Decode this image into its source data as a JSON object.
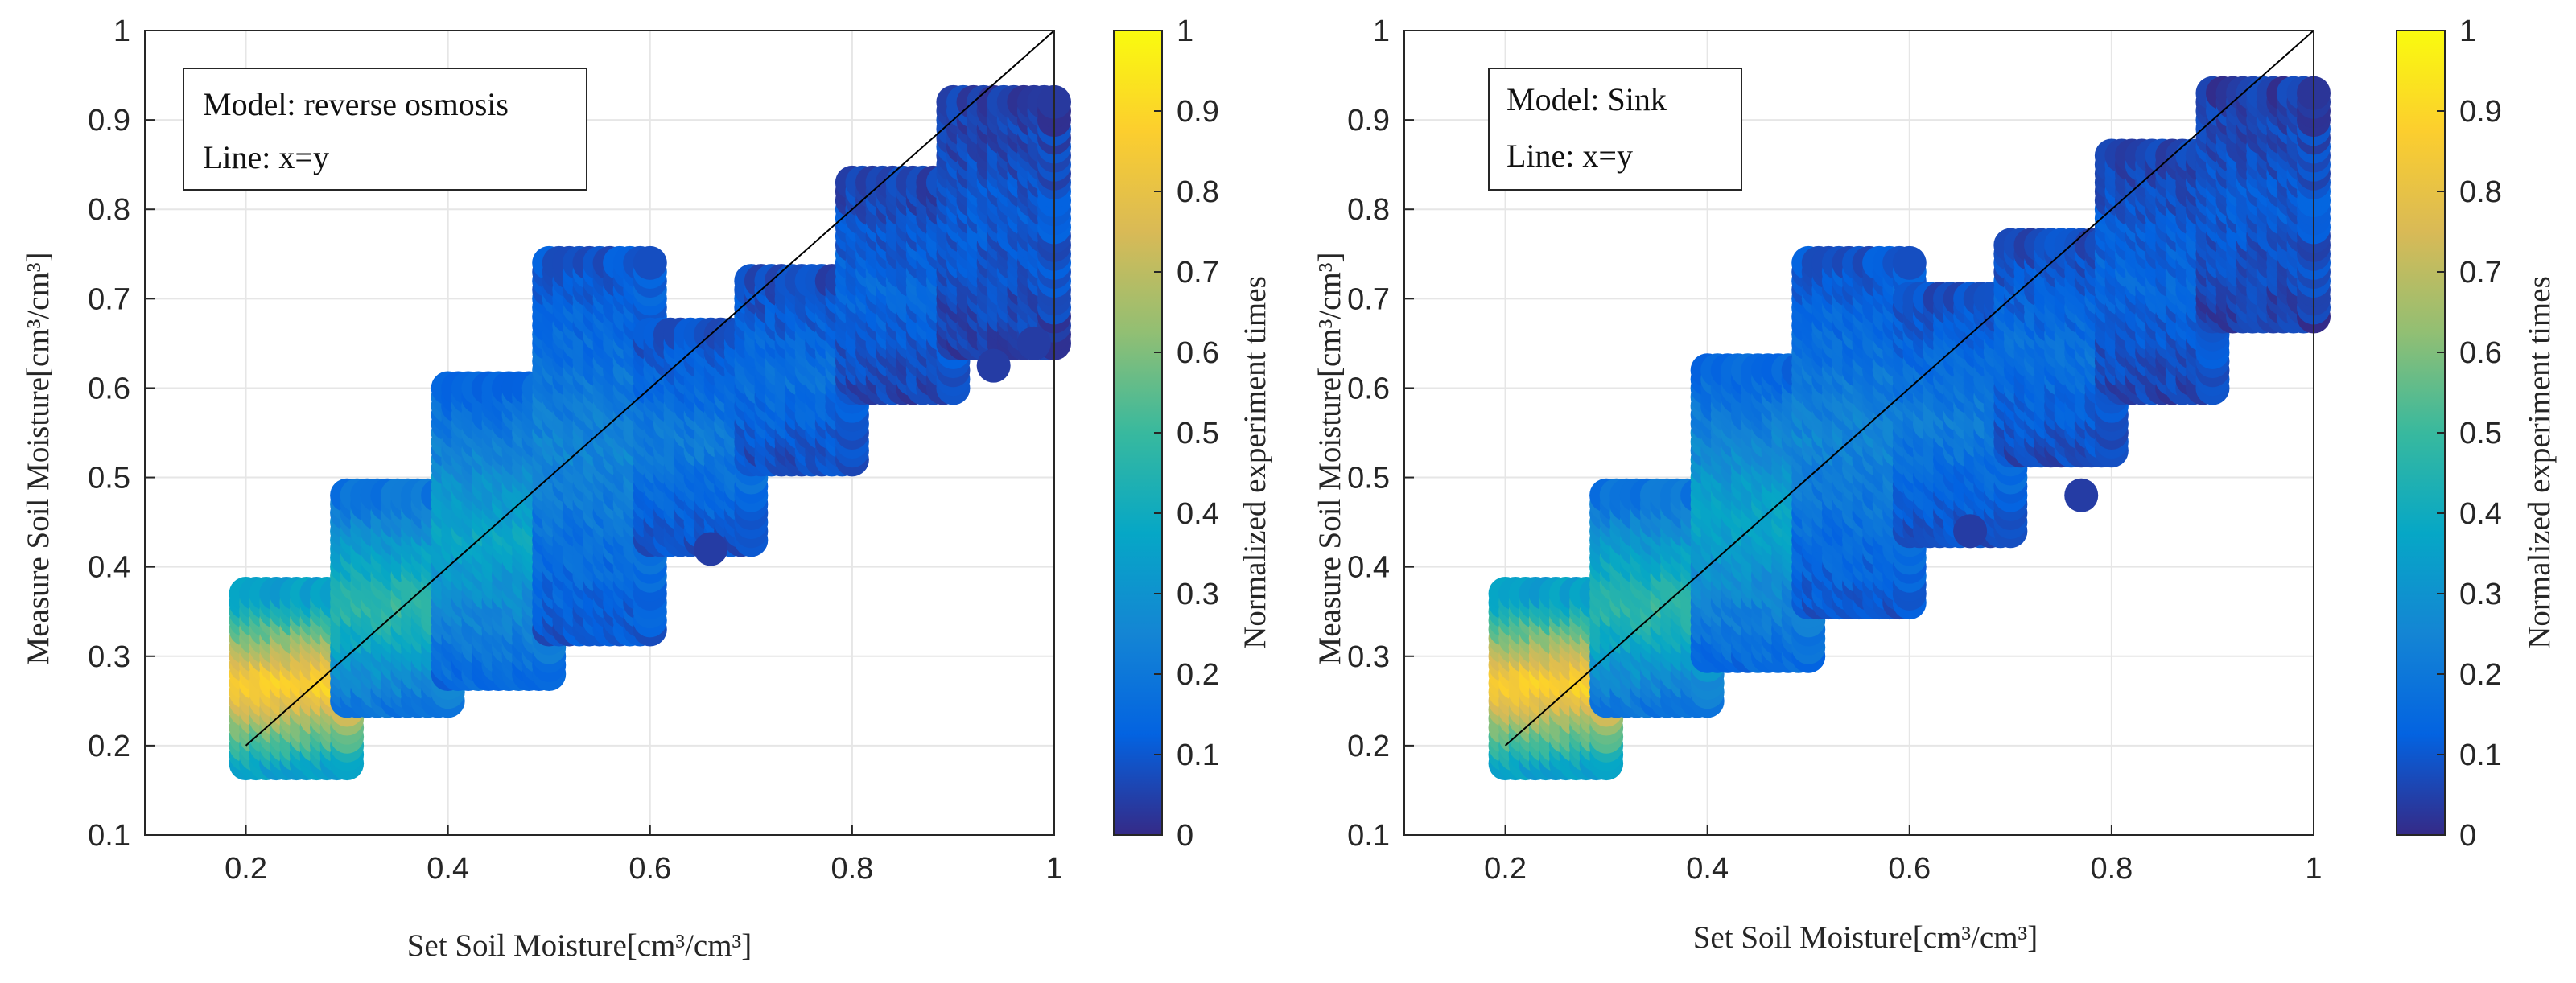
{
  "chart_data": [
    {
      "type": "scatter",
      "x_axis": {
        "label": "Set Soil Moisture[cm³/cm³]",
        "range": [
          0.1,
          1.0
        ],
        "ticks": [
          0.2,
          0.4,
          0.6,
          0.8,
          1
        ]
      },
      "y_axis": {
        "label": "Measure Soil Moisture[cm³/cm³]",
        "range": [
          0.1,
          1.0
        ],
        "ticks": [
          0.1,
          0.2,
          0.3,
          0.4,
          0.5,
          0.6,
          0.7,
          0.8,
          0.9,
          1
        ]
      },
      "legend": {
        "lines": [
          "Model: reverse osmosis",
          "Line: x=y"
        ],
        "placement": "top-left"
      },
      "reference_line": {
        "label": "x=y",
        "from": [
          0.2,
          0.2
        ],
        "to": [
          1.0,
          1.0
        ]
      },
      "colorbar": {
        "label": "Normalized experiment times",
        "range": [
          0,
          1
        ],
        "ticks": [
          0,
          0.1,
          0.2,
          0.3,
          0.4,
          0.5,
          0.6,
          0.7,
          0.8,
          0.9,
          1
        ]
      },
      "grid": true,
      "clusters": [
        {
          "x_range": [
            0.2,
            0.3
          ],
          "y_range": [
            0.18,
            0.37
          ],
          "density": 1.0
        },
        {
          "x_range": [
            0.3,
            0.4
          ],
          "y_range": [
            0.25,
            0.48
          ],
          "density": 0.55
        },
        {
          "x_range": [
            0.4,
            0.5
          ],
          "y_range": [
            0.28,
            0.6
          ],
          "density": 0.42
        },
        {
          "x_range": [
            0.5,
            0.6
          ],
          "y_range": [
            0.33,
            0.74
          ],
          "density": 0.28
        },
        {
          "x_range": [
            0.6,
            0.7
          ],
          "y_range": [
            0.43,
            0.66
          ],
          "density": 0.24
        },
        {
          "x_range": [
            0.7,
            0.8
          ],
          "y_range": [
            0.52,
            0.72
          ],
          "density": 0.2
        },
        {
          "x_range": [
            0.8,
            0.9
          ],
          "y_range": [
            0.6,
            0.83
          ],
          "density": 0.16
        },
        {
          "x_range": [
            0.9,
            1.0
          ],
          "y_range": [
            0.65,
            0.92
          ],
          "density": 0.12
        }
      ],
      "outliers": [
        {
          "x": 0.66,
          "y": 0.42
        },
        {
          "x": 0.94,
          "y": 0.625
        },
        {
          "x": 0.98,
          "y": 0.65
        }
      ]
    },
    {
      "type": "scatter",
      "x_axis": {
        "label": "Set Soil Moisture[cm³/cm³]",
        "range": [
          0.1,
          1.0
        ],
        "ticks": [
          0.2,
          0.4,
          0.6,
          0.8,
          1
        ]
      },
      "y_axis": {
        "label": "Measure Soil Moisture[cm³/cm³]",
        "range": [
          0.1,
          1.0
        ],
        "ticks": [
          0.1,
          0.2,
          0.3,
          0.4,
          0.5,
          0.6,
          0.7,
          0.8,
          0.9,
          1
        ]
      },
      "legend": {
        "lines": [
          "Model:  Sink",
          "Line:  x=y"
        ],
        "placement": "top-left"
      },
      "reference_line": {
        "label": "x=y",
        "from": [
          0.2,
          0.2
        ],
        "to": [
          1.0,
          1.0
        ]
      },
      "colorbar": {
        "label": "Normalized experiment times",
        "range": [
          0,
          1
        ],
        "ticks": [
          0,
          0.1,
          0.2,
          0.3,
          0.4,
          0.5,
          0.6,
          0.7,
          0.8,
          0.9,
          1
        ]
      },
      "grid": true,
      "clusters": [
        {
          "x_range": [
            0.2,
            0.3
          ],
          "y_range": [
            0.18,
            0.37
          ],
          "density": 1.0
        },
        {
          "x_range": [
            0.3,
            0.4
          ],
          "y_range": [
            0.25,
            0.48
          ],
          "density": 0.55
        },
        {
          "x_range": [
            0.4,
            0.5
          ],
          "y_range": [
            0.3,
            0.62
          ],
          "density": 0.42
        },
        {
          "x_range": [
            0.5,
            0.6
          ],
          "y_range": [
            0.36,
            0.74
          ],
          "density": 0.28
        },
        {
          "x_range": [
            0.6,
            0.7
          ],
          "y_range": [
            0.44,
            0.7
          ],
          "density": 0.24
        },
        {
          "x_range": [
            0.7,
            0.8
          ],
          "y_range": [
            0.53,
            0.76
          ],
          "density": 0.2
        },
        {
          "x_range": [
            0.8,
            0.9
          ],
          "y_range": [
            0.6,
            0.86
          ],
          "density": 0.16
        },
        {
          "x_range": [
            0.9,
            1.0
          ],
          "y_range": [
            0.68,
            0.93
          ],
          "density": 0.12
        }
      ],
      "outliers": [
        {
          "x": 0.77,
          "y": 0.48
        },
        {
          "x": 0.66,
          "y": 0.44
        }
      ]
    }
  ],
  "colors": {
    "axis": "#262626",
    "grid": "#e6e6e6",
    "reference_line": "#000000",
    "parula": [
      "#352a87",
      "#0363e1",
      "#1485d4",
      "#06a7c6",
      "#38b99e",
      "#92bf73",
      "#d9ba56",
      "#fcce2e",
      "#f9fb0e"
    ]
  }
}
